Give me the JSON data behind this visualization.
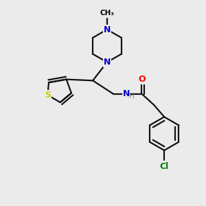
{
  "bg_color": "#ebebeb",
  "atom_colors": {
    "N": "#0000cc",
    "O": "#ff0000",
    "S": "#cccc00",
    "Cl": "#008000",
    "C": "#000000",
    "H": "#888888"
  },
  "lw": 1.6
}
